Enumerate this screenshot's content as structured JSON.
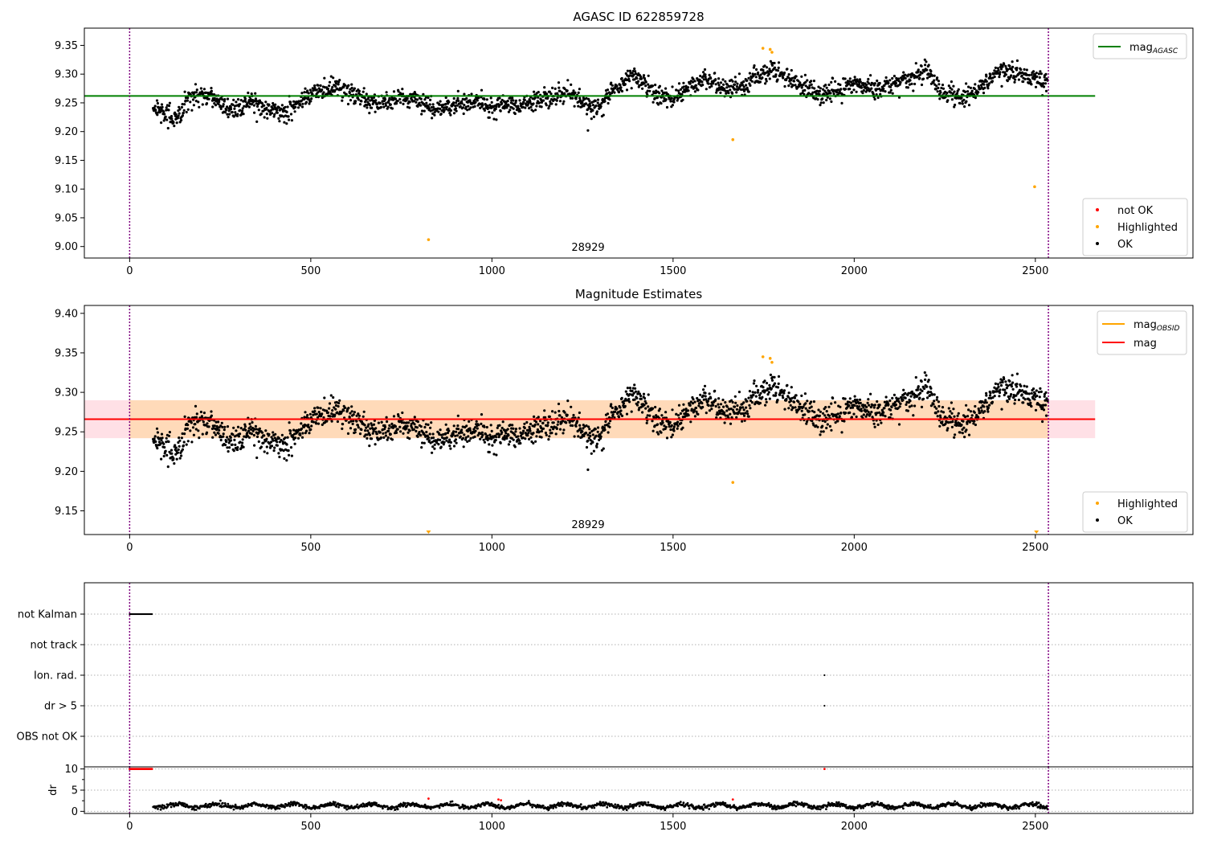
{
  "colors": {
    "ok": "#000000",
    "highlighted": "#ffa500",
    "not_ok": "#ff0000",
    "mag_agasc_line": "#008000",
    "mag_obsid_line": "#ffa500",
    "mag_line": "#ff0000",
    "band_obsid": "#ffdab9",
    "band_mag": "#ffe0e6",
    "obs_boundary": "#800080"
  },
  "chart_data": [
    {
      "type": "scatter",
      "title": "AGASC ID 622859728",
      "xlim": [
        -125,
        2935
      ],
      "ylim": [
        8.98,
        9.38
      ],
      "xticks": [
        0,
        500,
        1000,
        1500,
        2000,
        2500
      ],
      "yticks": [
        9.0,
        9.05,
        9.1,
        9.15,
        9.2,
        9.25,
        9.3,
        9.35
      ],
      "obs_boundaries": [
        0,
        2536
      ],
      "obsid_label": "28929",
      "hline": {
        "value": 9.262,
        "xrange": [
          -125,
          2665
        ]
      },
      "legend_lines": [
        {
          "label": "mag",
          "sub": "AGASC",
          "color": "#008000"
        }
      ],
      "legend_points": [
        {
          "label": "not OK",
          "color": "#ff0000"
        },
        {
          "label": "Highlighted",
          "color": "#ffa500"
        },
        {
          "label": "OK",
          "color": "#000000"
        }
      ],
      "series": [
        {
          "name": "Highlighted",
          "x": [
            825,
            1665,
            1748,
            1768,
            1773,
            2498
          ],
          "y": [
            9.012,
            9.186,
            9.345,
            9.343,
            9.338,
            9.104
          ]
        },
        {
          "name": "OK",
          "x_range": [
            65,
            2535
          ],
          "trend_x": [
            65,
            100,
            130,
            170,
            230,
            290,
            330,
            420,
            520,
            580,
            680,
            760,
            860,
            960,
            1000,
            1100,
            1210,
            1280,
            1330,
            1390,
            1460,
            1500,
            1590,
            1650,
            1700,
            1770,
            1840,
            1900,
            1960,
            2000,
            2060,
            2100,
            2150,
            2200,
            2240,
            2300,
            2340,
            2400,
            2460,
            2500,
            2535
          ],
          "trend_y": [
            9.245,
            9.23,
            9.222,
            9.265,
            9.262,
            9.235,
            9.25,
            9.232,
            9.27,
            9.275,
            9.248,
            9.255,
            9.24,
            9.255,
            9.242,
            9.25,
            9.268,
            9.238,
            9.27,
            9.3,
            9.262,
            9.26,
            9.292,
            9.275,
            9.28,
            9.31,
            9.285,
            9.262,
            9.275,
            9.285,
            9.272,
            9.28,
            9.29,
            9.305,
            9.268,
            9.258,
            9.272,
            9.305,
            9.3,
            9.292,
            9.285
          ]
        }
      ]
    },
    {
      "type": "scatter",
      "title": "Magnitude Estimates",
      "xlim": [
        -125,
        2935
      ],
      "ylim": [
        9.12,
        9.41
      ],
      "xticks": [
        0,
        500,
        1000,
        1500,
        2000,
        2500
      ],
      "yticks": [
        9.15,
        9.2,
        9.25,
        9.3,
        9.35,
        9.4
      ],
      "obs_boundaries": [
        0,
        2536
      ],
      "obsid_label": "28929",
      "band_mag": {
        "range": [
          9.242,
          9.29
        ],
        "xrange": [
          -125,
          2665
        ]
      },
      "band_obsid": {
        "range": [
          9.242,
          9.29
        ],
        "xrange": [
          0,
          2536
        ]
      },
      "hline_obsid": {
        "value": 9.266,
        "xrange": [
          0,
          2536
        ]
      },
      "hline": {
        "value": 9.266,
        "xrange": [
          -125,
          2665
        ]
      },
      "legend_lines": [
        {
          "label": "mag",
          "sub": "OBSID",
          "color": "#ffa500"
        },
        {
          "label": "mag",
          "sub": "",
          "color": "#ff0000"
        }
      ],
      "legend_points": [
        {
          "label": "Highlighted",
          "color": "#ffa500"
        },
        {
          "label": "OK",
          "color": "#000000"
        }
      ],
      "series": [
        {
          "name": "Highlighted",
          "x": [
            1665,
            1748,
            1768,
            1773
          ],
          "y": [
            9.186,
            9.345,
            9.343,
            9.338
          ]
        },
        {
          "name": "Highlighted below range",
          "x": [
            825,
            2503
          ],
          "y": [
            9.125,
            9.125
          ]
        },
        {
          "name": "OK",
          "x_range": [
            65,
            2535
          ]
        }
      ]
    },
    {
      "type": "scatter",
      "title": "",
      "xlim": [
        -125,
        2935
      ],
      "categories": [
        "not Kalman",
        "not track",
        "Ion. rad.",
        "dr > 5",
        "OBS not OK"
      ],
      "obs_boundaries": [
        0,
        2536
      ],
      "flags": {
        "not Kalman": {
          "x_range": [
            0,
            62
          ]
        },
        "Ion. rad.": {
          "x": [
            1918
          ]
        },
        "dr > 5": {
          "x": [
            1918
          ]
        }
      }
    },
    {
      "type": "scatter",
      "title": "",
      "xlim": [
        -125,
        2935
      ],
      "ylim": [
        -0.5,
        10.5
      ],
      "ylabel": "dr",
      "yticks": [
        0,
        5,
        10
      ],
      "xticks": [
        0,
        500,
        1000,
        1500,
        2000,
        2500
      ],
      "obs_boundaries": [
        0,
        2536
      ],
      "series": [
        {
          "name": "not OK",
          "x_range": [
            0,
            62
          ],
          "y_value": 10
        },
        {
          "name": "not OK",
          "x": [
            1918,
            825,
            1665,
            1018,
            1025
          ],
          "y": [
            10,
            3.0,
            2.8,
            2.8,
            2.6
          ]
        },
        {
          "name": "OK",
          "x_range": [
            65,
            2535
          ],
          "y_range": [
            0.3,
            2.6
          ]
        }
      ]
    }
  ]
}
